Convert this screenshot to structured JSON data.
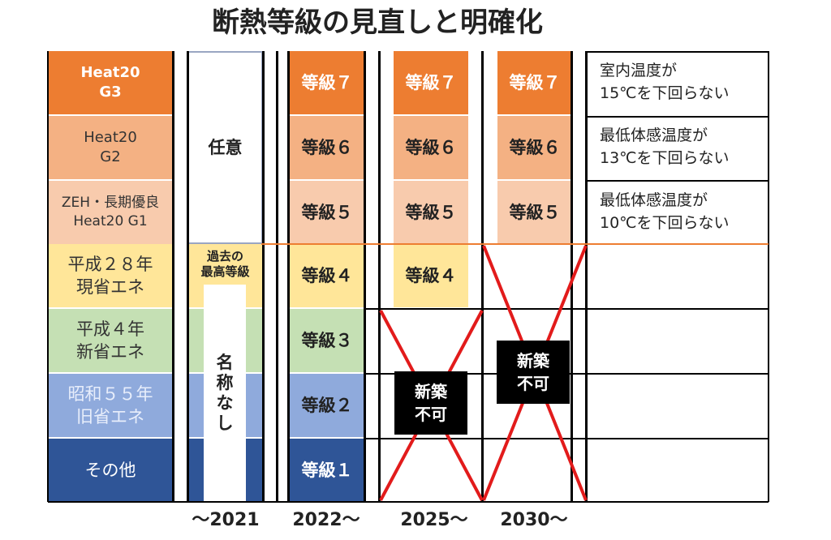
{
  "title": "断熱等級の見直しと明確化",
  "colors": {
    "grade7": "#ed7d31",
    "grade6": "#f4b183",
    "grade5": "#f8cbad",
    "grade4": "#ffe699",
    "grade3": "#c5e0b4",
    "grade2": "#8faadc",
    "grade1": "#2f5597",
    "cross": "#e21b1b",
    "separator": "#ed7d31"
  },
  "standards": [
    {
      "label": "Heat20\nG3"
    },
    {
      "label": "Heat20\nG2"
    },
    {
      "label": "ZEH・長期優良\nHeat20 G1"
    },
    {
      "label": "平成２８年\n現省エネ"
    },
    {
      "label": "平成４年\n新省エネ"
    },
    {
      "label": "昭和５５年\n旧省エネ"
    },
    {
      "label": "その他"
    }
  ],
  "period_2021": {
    "optional": "任意",
    "highest": "過去の\n最高等級",
    "unnamed": "名\n称\nな\nし"
  },
  "grades": {
    "g7": "等級７",
    "g6": "等級６",
    "g5": "等級５",
    "g4": "等級４",
    "g3": "等級３",
    "g2": "等級２",
    "g1": "等級１"
  },
  "not_allowed": "新築\n不可",
  "notes": [
    "室内温度が\n15℃を下回らない",
    "最低体感温度が\n13℃を下回らない",
    "最低体感温度が\n10℃を下回らない"
  ],
  "years": [
    "～2021",
    "2022～",
    "2025～",
    "2030～"
  ]
}
